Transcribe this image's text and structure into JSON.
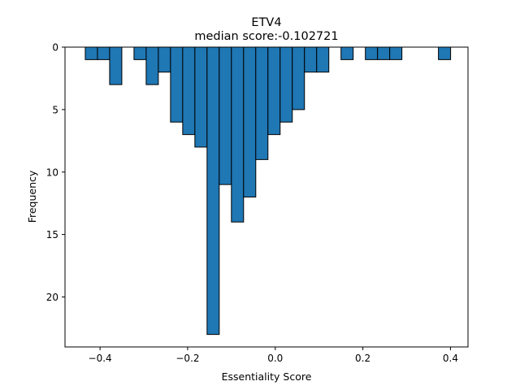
{
  "chart_data": {
    "type": "bar",
    "title": "ETV4",
    "subtitle": "median score:-0.102721",
    "xlabel": "Essentiality Score",
    "ylabel": "Frequency",
    "xlim": [
      -0.48,
      0.44
    ],
    "ylim": [
      24,
      0
    ],
    "y_inverted": true,
    "grid": false,
    "bar_color": "#1f77b4",
    "edge_color": "#000000",
    "bin_width": 0.0278,
    "x_ticks": [
      -0.4,
      -0.2,
      0.0,
      0.2,
      0.4
    ],
    "x_tick_labels": [
      "−0.4",
      "−0.2",
      "0.0",
      "0.2",
      "0.4"
    ],
    "y_ticks": [
      0,
      5,
      10,
      15,
      20
    ],
    "y_tick_labels": [
      "0",
      "5",
      "10",
      "15",
      "20"
    ],
    "bins": [
      {
        "x0": -0.4337,
        "count": 1
      },
      {
        "x0": -0.4059,
        "count": 1
      },
      {
        "x0": -0.3781,
        "count": 3
      },
      {
        "x0": -0.3503,
        "count": 0
      },
      {
        "x0": -0.3225,
        "count": 1
      },
      {
        "x0": -0.2947,
        "count": 3
      },
      {
        "x0": -0.2669,
        "count": 2
      },
      {
        "x0": -0.2391,
        "count": 6
      },
      {
        "x0": -0.2113,
        "count": 7
      },
      {
        "x0": -0.1835,
        "count": 8
      },
      {
        "x0": -0.1557,
        "count": 23
      },
      {
        "x0": -0.1279,
        "count": 11
      },
      {
        "x0": -0.1001,
        "count": 14
      },
      {
        "x0": -0.0723,
        "count": 12
      },
      {
        "x0": -0.0445,
        "count": 9
      },
      {
        "x0": -0.0167,
        "count": 7
      },
      {
        "x0": 0.0111,
        "count": 6
      },
      {
        "x0": 0.0389,
        "count": 5
      },
      {
        "x0": 0.0667,
        "count": 2
      },
      {
        "x0": 0.0945,
        "count": 2
      },
      {
        "x0": 0.1223,
        "count": 0
      },
      {
        "x0": 0.1501,
        "count": 1
      },
      {
        "x0": 0.1779,
        "count": 0
      },
      {
        "x0": 0.2057,
        "count": 1
      },
      {
        "x0": 0.2335,
        "count": 1
      },
      {
        "x0": 0.2613,
        "count": 1
      },
      {
        "x0": 0.2891,
        "count": 0
      },
      {
        "x0": 0.3169,
        "count": 0
      },
      {
        "x0": 0.3447,
        "count": 0
      },
      {
        "x0": 0.3725,
        "count": 1
      }
    ]
  }
}
